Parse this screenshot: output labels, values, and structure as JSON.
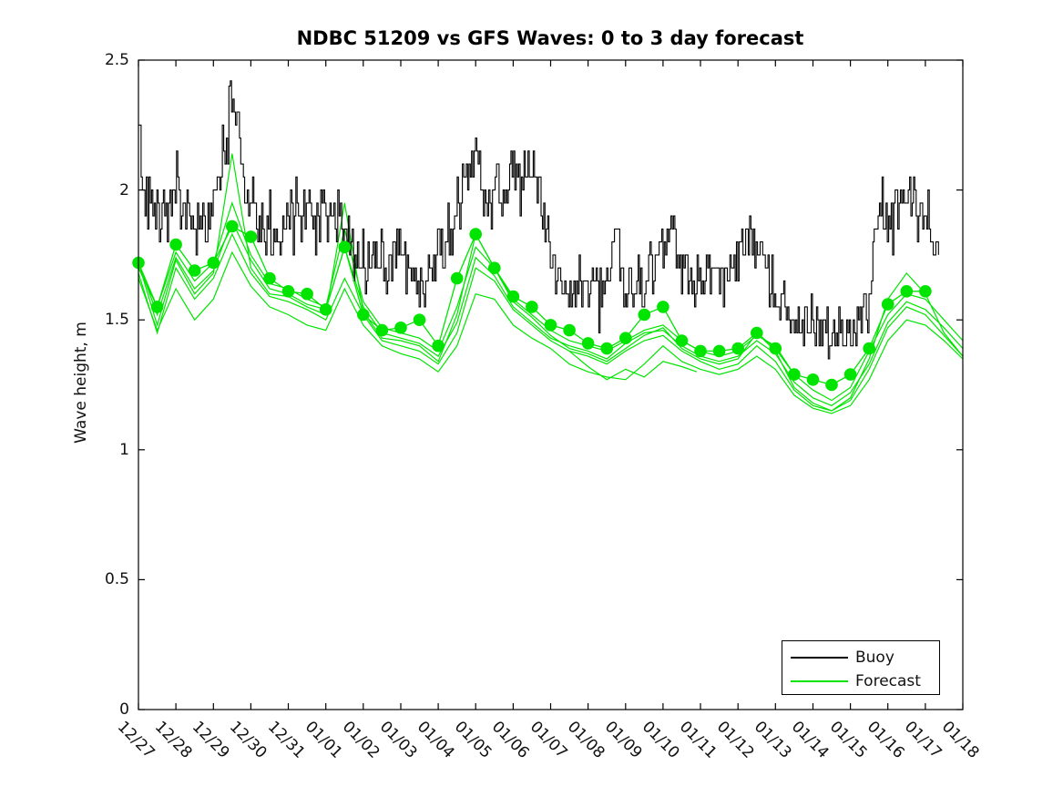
{
  "chart_data": {
    "type": "line",
    "title": "NDBC 51209 vs GFS Waves: 0 to 3 day forecast",
    "xlabel": "",
    "ylabel": "Wave height, m",
    "ylim": [
      0,
      2.5
    ],
    "y_ticks": [
      0,
      0.5,
      1,
      1.5,
      2,
      2.5
    ],
    "y_tick_labels": [
      "0",
      "0.5",
      "1",
      "1.5",
      "2",
      "2.5"
    ],
    "x_tick_labels": [
      "12/27",
      "12/28",
      "12/29",
      "12/30",
      "12/31",
      "01/01",
      "01/02",
      "01/03",
      "01/04",
      "01/05",
      "01/06",
      "01/07",
      "01/08",
      "01/09",
      "01/10",
      "01/11",
      "01/12",
      "01/13",
      "01/14",
      "01/15",
      "01/16",
      "01/17",
      "01/18"
    ],
    "xlim_days": [
      0,
      22
    ],
    "grid": false,
    "axis_color": "#000000",
    "legend": {
      "position": "lower-right",
      "entries": [
        {
          "label": "Buoy",
          "color": "#000000"
        },
        {
          "label": "Forecast",
          "color": "#00E400"
        }
      ]
    },
    "series": {
      "buoy": {
        "name": "Buoy",
        "color": "#000000",
        "style": "noisy-step-line",
        "end_day": 21.36,
        "trend": [
          [
            0,
            2.3
          ],
          [
            0.08,
            2.05
          ],
          [
            0.2,
            1.95
          ],
          [
            0.5,
            1.88
          ],
          [
            0.8,
            1.92
          ],
          [
            1.0,
            2.0
          ],
          [
            1.2,
            1.93
          ],
          [
            1.5,
            1.85
          ],
          [
            1.8,
            1.88
          ],
          [
            2.1,
            2.0
          ],
          [
            2.35,
            2.2
          ],
          [
            2.5,
            2.35
          ],
          [
            2.62,
            2.3
          ],
          [
            2.8,
            2.05
          ],
          [
            3.0,
            1.92
          ],
          [
            3.3,
            1.86
          ],
          [
            3.6,
            1.85
          ],
          [
            3.9,
            1.88
          ],
          [
            4.2,
            1.9
          ],
          [
            4.5,
            1.92
          ],
          [
            4.8,
            1.86
          ],
          [
            5.1,
            1.9
          ],
          [
            5.3,
            1.95
          ],
          [
            5.5,
            1.85
          ],
          [
            5.8,
            1.76
          ],
          [
            6.1,
            1.72
          ],
          [
            6.4,
            1.74
          ],
          [
            6.7,
            1.72
          ],
          [
            7.0,
            1.78
          ],
          [
            7.3,
            1.66
          ],
          [
            7.6,
            1.62
          ],
          [
            7.9,
            1.72
          ],
          [
            8.2,
            1.78
          ],
          [
            8.5,
            1.9
          ],
          [
            8.8,
            2.1
          ],
          [
            9.0,
            2.2
          ],
          [
            9.15,
            2.0
          ],
          [
            9.4,
            1.95
          ],
          [
            9.6,
            2.05
          ],
          [
            9.8,
            1.95
          ],
          [
            10.0,
            2.1
          ],
          [
            10.2,
            1.95
          ],
          [
            10.45,
            2.1
          ],
          [
            10.7,
            1.98
          ],
          [
            10.9,
            1.82
          ],
          [
            11.1,
            1.68
          ],
          [
            11.4,
            1.62
          ],
          [
            11.7,
            1.63
          ],
          [
            12.0,
            1.64
          ],
          [
            12.3,
            1.6
          ],
          [
            12.6,
            1.7
          ],
          [
            12.75,
            1.78
          ],
          [
            13.0,
            1.64
          ],
          [
            13.3,
            1.6
          ],
          [
            13.6,
            1.68
          ],
          [
            13.9,
            1.72
          ],
          [
            14.15,
            1.82
          ],
          [
            14.4,
            1.72
          ],
          [
            14.7,
            1.68
          ],
          [
            15.0,
            1.64
          ],
          [
            15.3,
            1.68
          ],
          [
            15.6,
            1.65
          ],
          [
            15.9,
            1.72
          ],
          [
            16.2,
            1.84
          ],
          [
            16.5,
            1.76
          ],
          [
            16.8,
            1.68
          ],
          [
            17.1,
            1.6
          ],
          [
            17.4,
            1.52
          ],
          [
            17.7,
            1.52
          ],
          [
            18.0,
            1.48
          ],
          [
            18.3,
            1.44
          ],
          [
            18.6,
            1.4
          ],
          [
            18.9,
            1.42
          ],
          [
            19.2,
            1.48
          ],
          [
            19.45,
            1.52
          ],
          [
            19.65,
            1.85
          ],
          [
            19.85,
            1.95
          ],
          [
            20.05,
            1.88
          ],
          [
            20.3,
            1.92
          ],
          [
            20.55,
            2.0
          ],
          [
            20.8,
            1.88
          ],
          [
            21.0,
            1.9
          ],
          [
            21.2,
            1.78
          ],
          [
            21.36,
            1.7
          ]
        ],
        "noise": {
          "amplitude": 0.15,
          "quantize": 0.05,
          "sample_interval_days": 0.035,
          "seed": 97531,
          "max_value": 2.42
        }
      },
      "forecast": {
        "name": "Forecast",
        "color": "#00E400",
        "marker_radius": 6.8,
        "marker_points": [
          [
            0,
            1.72
          ],
          [
            0.5,
            1.55
          ],
          [
            1,
            1.79
          ],
          [
            1.5,
            1.69
          ],
          [
            2,
            1.72
          ],
          [
            2.5,
            1.86
          ],
          [
            3,
            1.82
          ],
          [
            3.5,
            1.66
          ],
          [
            4,
            1.61
          ],
          [
            4.5,
            1.6
          ],
          [
            5,
            1.54
          ],
          [
            5.5,
            1.78
          ],
          [
            6,
            1.52
          ],
          [
            6.5,
            1.46
          ],
          [
            7,
            1.47
          ],
          [
            7.5,
            1.5
          ],
          [
            8,
            1.4
          ],
          [
            8.5,
            1.66
          ],
          [
            9,
            1.83
          ],
          [
            9.5,
            1.7
          ],
          [
            10,
            1.59
          ],
          [
            10.5,
            1.55
          ],
          [
            11,
            1.48
          ],
          [
            11.5,
            1.46
          ],
          [
            12,
            1.41
          ],
          [
            12.5,
            1.39
          ],
          [
            13,
            1.43
          ],
          [
            13.5,
            1.52
          ],
          [
            14,
            1.55
          ],
          [
            14.5,
            1.42
          ],
          [
            15,
            1.38
          ],
          [
            15.5,
            1.38
          ],
          [
            16,
            1.39
          ],
          [
            16.5,
            1.45
          ],
          [
            17,
            1.39
          ],
          [
            17.5,
            1.29
          ],
          [
            18,
            1.27
          ],
          [
            18.5,
            1.25
          ],
          [
            19,
            1.29
          ],
          [
            19.5,
            1.39
          ],
          [
            20,
            1.56
          ],
          [
            20.5,
            1.61
          ],
          [
            21,
            1.61
          ]
        ],
        "lines": [
          {
            "x0": 0,
            "dx": 0.5,
            "values": [
              1.72,
              1.48,
              1.73,
              1.6,
              1.68,
              2.14,
              1.7,
              1.6,
              1.59,
              1.55,
              1.52,
              1.95,
              1.53,
              1.43,
              1.42,
              1.4,
              1.34,
              1.52,
              1.83,
              1.7,
              1.57,
              1.51,
              1.44,
              1.39,
              1.37,
              1.34,
              1.39,
              1.44,
              1.47,
              1.39,
              1.35,
              1.33,
              1.35,
              1.45,
              1.38,
              1.24,
              1.18,
              1.15,
              1.2,
              1.35,
              1.58,
              1.68,
              1.6,
              1.45,
              1.36
            ]
          },
          {
            "x0": 0,
            "dx": 0.5,
            "values": [
              1.7,
              1.55,
              1.76,
              1.65,
              1.72,
              1.95,
              1.75,
              1.64,
              1.62,
              1.58,
              1.55,
              1.85,
              1.57,
              1.47,
              1.45,
              1.43,
              1.38,
              1.55,
              1.78,
              1.7,
              1.58,
              1.52,
              1.46,
              1.42,
              1.4,
              1.38,
              1.42,
              1.46,
              1.48,
              1.42,
              1.38,
              1.36,
              1.38,
              1.44,
              1.4,
              1.29,
              1.23,
              1.19,
              1.24,
              1.38,
              1.52,
              1.6,
              1.58,
              1.5,
              1.42
            ]
          },
          {
            "x0": 0,
            "dx": 0.5,
            "values": [
              1.68,
              1.45,
              1.7,
              1.58,
              1.66,
              1.83,
              1.68,
              1.59,
              1.57,
              1.54,
              1.5,
              1.66,
              1.52,
              1.42,
              1.4,
              1.38,
              1.33,
              1.45,
              1.7,
              1.65,
              1.54,
              1.48,
              1.42,
              1.38,
              1.36,
              1.33,
              1.38,
              1.42,
              1.44,
              1.38,
              1.34,
              1.31,
              1.33,
              1.4,
              1.34,
              1.23,
              1.17,
              1.15,
              1.19,
              1.31,
              1.47,
              1.55,
              1.52,
              1.44,
              1.36
            ]
          },
          {
            "x0": 0,
            "dx": 0.5,
            "values": [
              1.72,
              1.52,
              1.74,
              1.62,
              1.69,
              1.88,
              1.73,
              1.62,
              1.6,
              1.56,
              1.54,
              1.78,
              1.55,
              1.45,
              1.43,
              1.41,
              1.36,
              1.49,
              1.74,
              1.67,
              1.55,
              1.49,
              1.43,
              1.4,
              1.38,
              1.35,
              1.41,
              1.45,
              1.46,
              1.4,
              1.36,
              1.34,
              1.36,
              1.42,
              1.37,
              1.26,
              1.2,
              1.17,
              1.22,
              1.33,
              1.49,
              1.57,
              1.54,
              1.47,
              1.39
            ]
          },
          {
            "x0": 0,
            "dx": 0.5,
            "values": [
              1.66,
              1.46,
              1.62,
              1.5,
              1.58,
              1.76,
              1.63,
              1.55,
              1.52,
              1.48,
              1.46,
              1.62,
              1.48,
              1.4,
              1.37,
              1.35,
              1.3,
              1.4,
              1.6,
              1.58,
              1.48,
              1.43,
              1.39,
              1.33,
              1.3,
              1.28,
              1.27,
              1.33,
              1.4,
              1.34,
              1.31,
              1.29,
              1.31,
              1.36,
              1.31,
              1.21,
              1.16,
              1.14,
              1.17,
              1.27,
              1.42,
              1.5,
              1.48,
              1.42,
              1.35
            ]
          }
        ],
        "segments": [
          {
            "points": [
              [
                11.5,
                1.38
              ],
              [
                12,
                1.32
              ],
              [
                12.5,
                1.27
              ],
              [
                13,
                1.31
              ],
              [
                13.5,
                1.28
              ],
              [
                14,
                1.34
              ],
              [
                14.5,
                1.32
              ],
              [
                14.9,
                1.3
              ]
            ]
          }
        ]
      }
    }
  },
  "page": {
    "background": "#ffffff"
  }
}
